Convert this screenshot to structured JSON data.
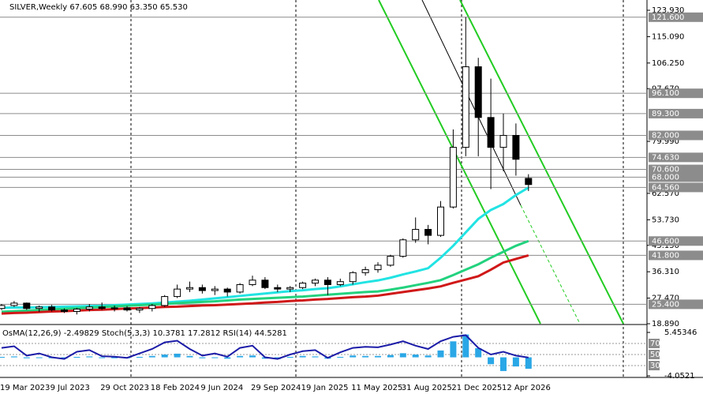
{
  "chart_data": [
    {
      "type": "candlestick",
      "title": "SILVER,Weekly  67.605 68.990 63.350 65.530",
      "categories": [
        "19 Mar 2023",
        null,
        null,
        null,
        "9 Jul 2023",
        null,
        null,
        null,
        "29 Oct 2023",
        null,
        null,
        null,
        "18 Feb 2024",
        null,
        null,
        null,
        "9 Jun 2024",
        null,
        null,
        null,
        "29 Sep 2024",
        null,
        null,
        null,
        "19 Jan 2025",
        null,
        null,
        null,
        "11 May 2025",
        null,
        null,
        null,
        "31 Aug 2025",
        null,
        null,
        null,
        "21 Dec 2025",
        null,
        null,
        null,
        "12 Apr 2026",
        null,
        null
      ],
      "ohlc": [
        [
          24.0,
          25.5,
          23.5,
          25.0
        ],
        [
          25.0,
          26.5,
          24.5,
          25.8
        ],
        [
          25.8,
          26.0,
          23.5,
          24.0
        ],
        [
          24.0,
          25.0,
          22.8,
          24.5
        ],
        [
          24.5,
          25.2,
          23.0,
          23.5
        ],
        [
          23.5,
          24.0,
          22.5,
          23.0
        ],
        [
          23.0,
          24.2,
          22.0,
          23.8
        ],
        [
          23.8,
          25.5,
          23.0,
          24.5
        ],
        [
          24.5,
          26.0,
          23.5,
          24.0
        ],
        [
          24.0,
          25.0,
          23.0,
          24.2
        ],
        [
          24.2,
          24.8,
          23.0,
          23.5
        ],
        [
          23.5,
          24.5,
          22.5,
          24.0
        ],
        [
          24.0,
          25.5,
          23.0,
          25.0
        ],
        [
          25.0,
          28.5,
          24.5,
          28.0
        ],
        [
          28.0,
          32.0,
          27.5,
          30.5
        ],
        [
          30.5,
          33.0,
          29.5,
          31.0
        ],
        [
          31.0,
          32.0,
          29.0,
          30.0
        ],
        [
          30.0,
          31.5,
          28.5,
          30.5
        ],
        [
          30.5,
          31.0,
          28.0,
          29.5
        ],
        [
          29.5,
          32.5,
          29.0,
          32.0
        ],
        [
          32.0,
          35.0,
          31.5,
          33.5
        ],
        [
          33.5,
          34.5,
          30.5,
          31.0
        ],
        [
          31.0,
          32.0,
          29.5,
          30.5
        ],
        [
          30.5,
          31.5,
          29.5,
          31.0
        ],
        [
          31.0,
          33.0,
          30.5,
          32.5
        ],
        [
          32.5,
          34.0,
          31.5,
          33.5
        ],
        [
          33.5,
          34.5,
          28.5,
          32.0
        ],
        [
          32.0,
          34.0,
          31.5,
          33.0
        ],
        [
          33.0,
          36.5,
          32.0,
          36.0
        ],
        [
          36.0,
          38.0,
          35.0,
          37.0
        ],
        [
          37.0,
          39.5,
          36.0,
          38.5
        ],
        [
          38.5,
          42.0,
          38.0,
          41.5
        ],
        [
          41.5,
          47.5,
          41.0,
          47.0
        ],
        [
          47.0,
          54.5,
          46.0,
          50.5
        ],
        [
          50.5,
          52.0,
          45.5,
          48.5
        ],
        [
          48.5,
          60.0,
          48.0,
          58.0
        ],
        [
          58.0,
          84.0,
          57.5,
          78.0
        ],
        [
          78.0,
          121.6,
          75.0,
          105.0
        ],
        [
          105.0,
          108.0,
          75.0,
          88.0
        ],
        [
          88.0,
          101.0,
          64.0,
          78.0
        ],
        [
          78.0,
          89.3,
          70.0,
          82.0
        ],
        [
          82.0,
          86.0,
          68.5,
          74.0
        ],
        [
          67.605,
          68.99,
          63.35,
          65.53
        ]
      ],
      "series": [
        {
          "color": "#22e3e3",
          "values": [
            24.2,
            24.3,
            24.3,
            24.4,
            24.5,
            24.6,
            24.7,
            24.8,
            24.9,
            25.1,
            25.3,
            25.5,
            25.7,
            26.0,
            26.3,
            26.6,
            27.0,
            27.4,
            27.8,
            28.2,
            28.6,
            29.0,
            29.4,
            29.8,
            30.1,
            30.5,
            30.8,
            31.4,
            32.1,
            32.8,
            33.4,
            34.3,
            35.4,
            36.4,
            37.5,
            41.0,
            45.0,
            49.5,
            54.0,
            57.0,
            59.0,
            62.0,
            64.5
          ]
        },
        {
          "color": "#22d27e",
          "values": [
            22.9,
            23.1,
            23.3,
            23.5,
            23.7,
            23.9,
            24.1,
            24.3,
            24.5,
            24.7,
            24.9,
            25.1,
            25.3,
            25.5,
            25.8,
            26.0,
            26.2,
            26.4,
            26.7,
            27.0,
            27.2,
            27.4,
            27.6,
            27.8,
            28.0,
            28.3,
            28.6,
            28.9,
            29.2,
            29.5,
            29.7,
            30.3,
            31.0,
            31.8,
            32.6,
            33.5,
            35.2,
            37.0,
            38.8,
            41.0,
            43.0,
            45.0,
            46.6
          ]
        },
        {
          "color": "#d01818",
          "values": [
            22.3,
            22.5,
            22.6,
            22.8,
            23.0,
            23.1,
            23.3,
            23.5,
            23.6,
            23.8,
            24.0,
            24.1,
            24.3,
            24.5,
            24.6,
            24.8,
            25.0,
            25.1,
            25.3,
            25.5,
            25.7,
            26.0,
            26.2,
            26.5,
            26.7,
            27.0,
            27.2,
            27.5,
            27.8,
            28.0,
            28.3,
            28.9,
            29.5,
            30.1,
            30.7,
            31.4,
            32.6,
            33.7,
            34.8,
            37.0,
            39.4,
            40.6,
            41.8
          ]
        }
      ],
      "ylim": [
        18.89,
        127.37
      ],
      "yticks": [
        {
          "value": 123.93,
          "label": "123.930"
        },
        {
          "value": 115.09,
          "label": "115.090"
        },
        {
          "value": 106.25,
          "label": "106.250"
        },
        {
          "value": 97.67,
          "label": "97.670"
        },
        {
          "value": 79.99,
          "label": "79.990"
        },
        {
          "value": 62.57,
          "label": "62.570"
        },
        {
          "value": 53.73,
          "label": "53.730"
        },
        {
          "value": 45.15,
          "label": "45.150"
        },
        {
          "value": 36.31,
          "label": "36.310"
        },
        {
          "value": 27.47,
          "label": "27.470"
        },
        {
          "value": 18.89,
          "label": "18.890"
        }
      ],
      "levels": [
        {
          "value": 121.6,
          "label": "121.600"
        },
        {
          "value": 96.1,
          "label": "96.100"
        },
        {
          "value": 89.3,
          "label": "89.300"
        },
        {
          "value": 82,
          "label": "82.000"
        },
        {
          "value": 74.63,
          "label": "74.630"
        },
        {
          "value": 70.6,
          "label": "70.600"
        },
        {
          "value": 68,
          "label": "68.000"
        },
        {
          "value": 64.56,
          "label": "64.560"
        },
        {
          "value": 46.6,
          "label": "46.600"
        },
        {
          "value": 41.8,
          "label": "41.800"
        },
        {
          "value": 25.4,
          "label": "25.400"
        }
      ]
    },
    {
      "type": "oscillator",
      "title": "OsMA(12,26,9) -2.49829  Stoch(5,3,3) 10.3781 17.2812  RSI(14) 44.5281",
      "osma": [
        0.1,
        0.2,
        -0.2,
        -0.1,
        -0.2,
        -0.3,
        0.1,
        0.2,
        -0.1,
        -0.2,
        -0.2,
        0.1,
        0.3,
        0.6,
        0.8,
        0.3,
        -0.2,
        -0.1,
        -0.3,
        0.3,
        0.4,
        -0.3,
        -0.4,
        0.1,
        0.3,
        0.2,
        -0.3,
        0.1,
        0.4,
        0.3,
        0.3,
        0.5,
        0.9,
        0.6,
        0.4,
        1.5,
        3.5,
        5.0,
        2.0,
        -1.5,
        -3.0,
        -2.0,
        -2.49829
      ],
      "osma_color": "#2aa7e6",
      "rsi": [
        62,
        65,
        48,
        52,
        45,
        42,
        55,
        58,
        47,
        46,
        44,
        52,
        60,
        72,
        75,
        60,
        48,
        52,
        46,
        62,
        66,
        45,
        42,
        50,
        56,
        58,
        44,
        54,
        62,
        64,
        63,
        68,
        74,
        66,
        60,
        74,
        82,
        85,
        62,
        50,
        55,
        48,
        44.5281
      ],
      "rsi_color": "#1c1ca8",
      "ylim": [
        -4.4,
        6.84
      ],
      "yticks": [
        {
          "value": 5.45346,
          "label": "5.45346"
        },
        {
          "value": -4.0521,
          "label": "-4.0521"
        }
      ],
      "y2lim": [
        8.6,
        101.4
      ],
      "y2ticks": [
        70,
        50,
        30
      ]
    }
  ]
}
